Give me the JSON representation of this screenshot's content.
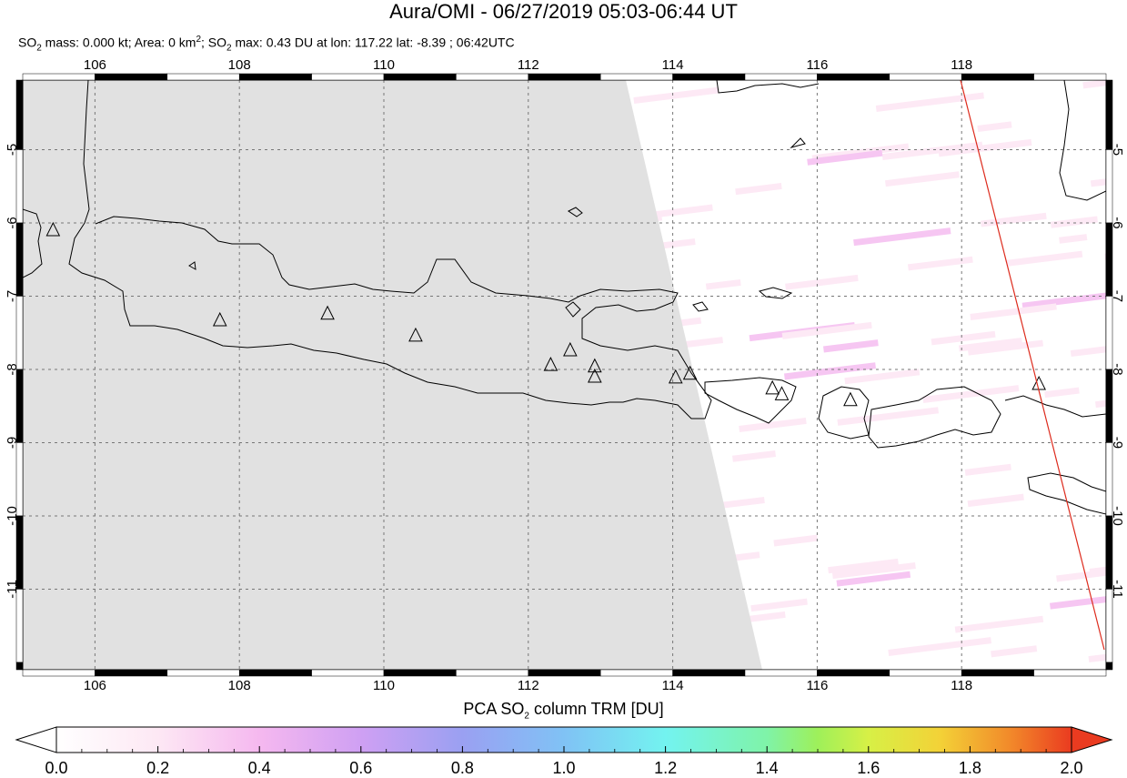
{
  "header": {
    "title": "Aura/OMI - 06/27/2019 05:03-06:44 UT",
    "subtitle_parts": [
      "SO",
      "2",
      " mass: 0.000 kt; Area: 0 km",
      "2",
      "; SO",
      "2",
      " max: 0.43 DU at lon: 117.22 lat: -8.39 ; 06:42UTC"
    ]
  },
  "map": {
    "lon_range": [
      105,
      120
    ],
    "lat_range": [
      -12.1,
      -4.05
    ],
    "lon_ticks": [
      "106",
      "108",
      "110",
      "112",
      "114",
      "116",
      "118"
    ],
    "lat_ticks": [
      "-5",
      "-6",
      "-7",
      "-8",
      "-9",
      "-10",
      "-11"
    ],
    "no_data_color": "#e1e1e1",
    "coast_color": "#000000",
    "orbit_line_color": "#dd2b1d",
    "grid": "dotted",
    "volcano_marker": "triangle-icon",
    "volcanoes": [
      {
        "lon": 105.42,
        "lat": -6.1
      },
      {
        "lon": 107.73,
        "lat": -7.33
      },
      {
        "lon": 109.22,
        "lat": -7.24
      },
      {
        "lon": 110.44,
        "lat": -7.54
      },
      {
        "lon": 112.31,
        "lat": -7.94
      },
      {
        "lon": 112.58,
        "lat": -7.74
      },
      {
        "lon": 112.92,
        "lat": -7.96
      },
      {
        "lon": 112.92,
        "lat": -8.1
      },
      {
        "lon": 114.04,
        "lat": -8.11
      },
      {
        "lon": 114.24,
        "lat": -8.06
      },
      {
        "lon": 115.38,
        "lat": -8.26
      },
      {
        "lon": 115.51,
        "lat": -8.34
      },
      {
        "lon": 116.46,
        "lat": -8.42
      },
      {
        "lon": 119.07,
        "lat": -8.2
      }
    ]
  },
  "colorbar": {
    "title_parts": [
      "PCA SO",
      "2",
      " column TRM [DU]"
    ],
    "ticks": [
      "0.0",
      "0.2",
      "0.4",
      "0.6",
      "0.8",
      "1.0",
      "1.2",
      "1.4",
      "1.6",
      "1.8",
      "2.0"
    ],
    "colors": [
      "#ffffff",
      "#fde8f4",
      "#f5b8ef",
      "#cfa0f3",
      "#9aa0f2",
      "#80c2f5",
      "#73f3f0",
      "#7ff3a8",
      "#9ef05a",
      "#d7f046",
      "#f3d237",
      "#f2892a",
      "#ea3b20"
    ]
  }
}
